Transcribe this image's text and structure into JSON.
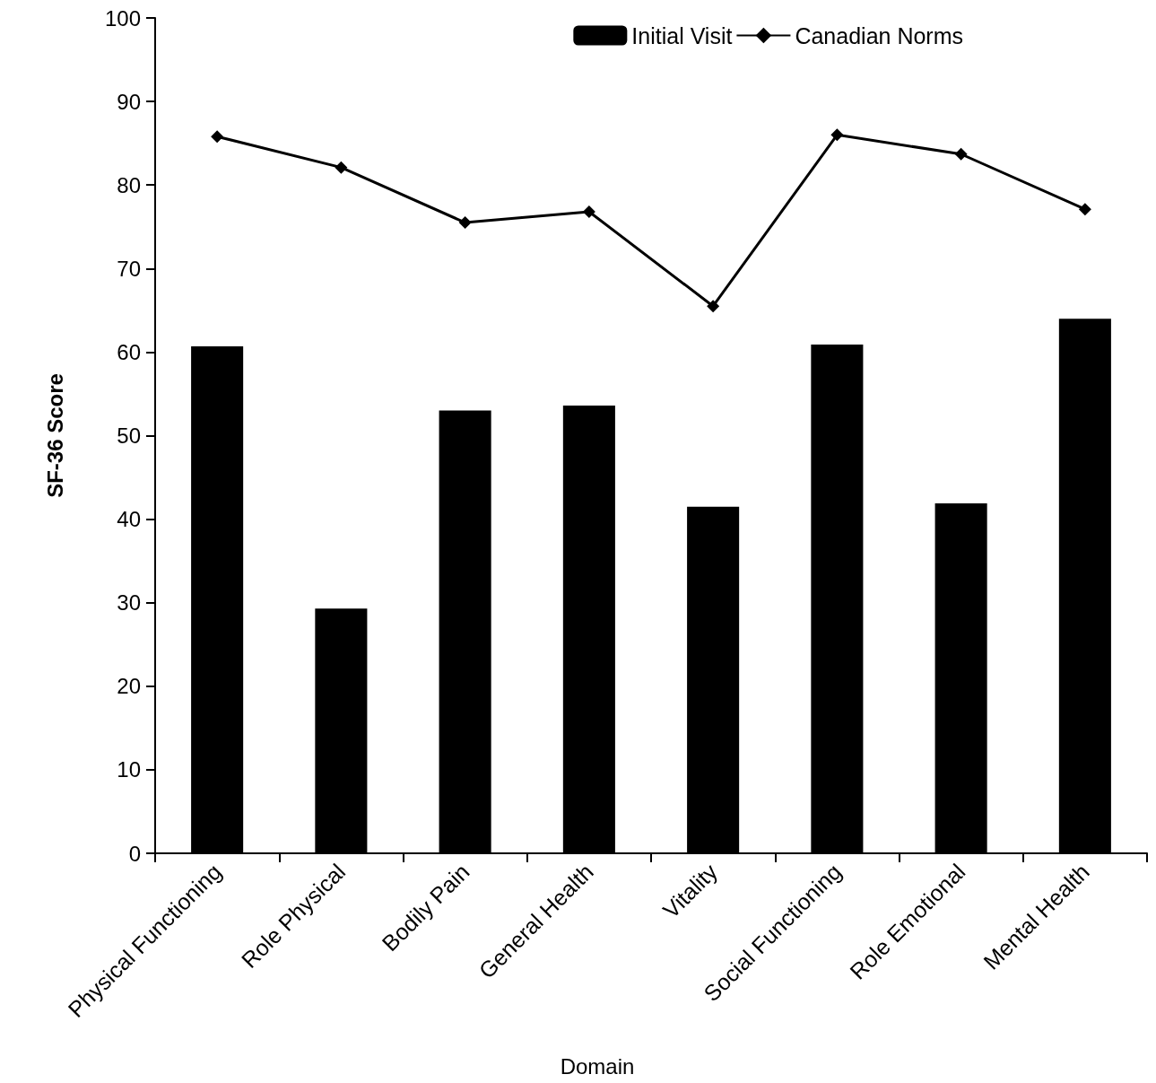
{
  "chart_data": {
    "type": "bar",
    "xlabel": "Domain",
    "ylabel": "SF-36 Score",
    "categories": [
      "Physical Functioning",
      "Role Physical",
      "Bodily Pain",
      "General Health",
      "Vitality",
      "Social Functioning",
      "Role Emotional",
      "Mental Health"
    ],
    "series": [
      {
        "name": "Initial Visit",
        "color": "#000000",
        "values": [
          60.7,
          29.3,
          53.0,
          53.6,
          41.5,
          60.9,
          41.9,
          64.0
        ]
      },
      {
        "name": "Canadian Norms",
        "type": "line",
        "color": "#000000",
        "marker": "diamond",
        "values": [
          85.8,
          82.1,
          75.5,
          76.8,
          65.5,
          86.0,
          83.7,
          77.1
        ]
      }
    ],
    "ylim": [
      0,
      100
    ],
    "yticks": [
      0,
      10,
      20,
      30,
      40,
      50,
      60,
      70,
      80,
      90,
      100
    ],
    "grid": false,
    "legend": "top right"
  }
}
